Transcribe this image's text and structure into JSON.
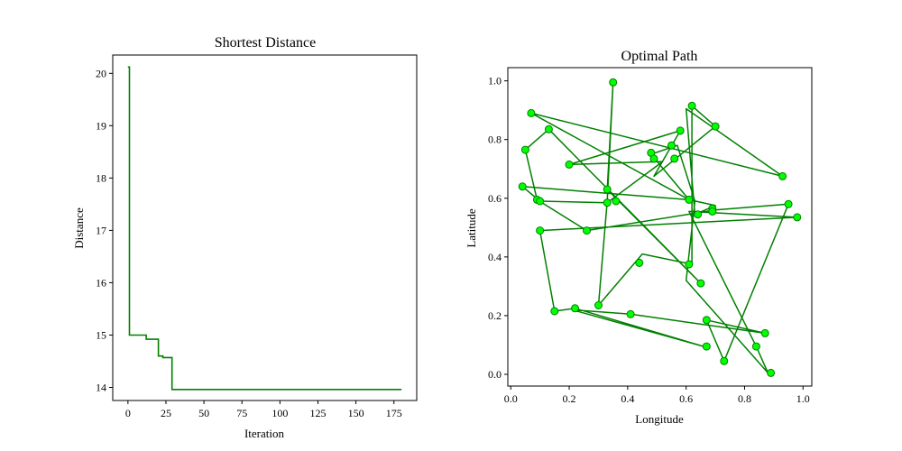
{
  "chart_data": [
    {
      "type": "line",
      "title": "Shortest Distance",
      "xlabel": "Iteration",
      "ylabel": "Distance",
      "xlim": [
        -10,
        190
      ],
      "ylim": [
        13.75,
        20.35
      ],
      "xticks": [
        0,
        25,
        50,
        75,
        100,
        125,
        150,
        175
      ],
      "yticks": [
        14,
        15,
        16,
        17,
        18,
        19,
        20
      ],
      "grid": false,
      "series": [
        {
          "color": "#008000",
          "x": [
            0,
            1,
            1,
            11,
            11,
            12,
            12,
            20,
            20,
            21,
            21,
            23,
            23,
            25,
            25,
            28,
            28,
            29,
            29,
            30,
            30,
            180
          ],
          "y": [
            20.12,
            20.12,
            15.0,
            15.0,
            15.0,
            15.0,
            14.92,
            14.92,
            14.6,
            14.6,
            14.6,
            14.6,
            14.57,
            14.57,
            14.57,
            14.57,
            14.57,
            14.57,
            13.96,
            13.96,
            13.96,
            13.96
          ]
        }
      ]
    },
    {
      "type": "scatter",
      "title": "Optimal Path",
      "xlabel": "Longitude",
      "ylabel": "Latitude",
      "xlim": [
        -0.01,
        1.03
      ],
      "ylim": [
        -0.04,
        1.045
      ],
      "xticks": [
        "0.0",
        "0.2",
        "0.4",
        "0.6",
        "0.8",
        "1.0"
      ],
      "yticks": [
        "0.0",
        "0.2",
        "0.4",
        "0.6",
        "0.8",
        "1.0"
      ],
      "grid": false,
      "line_color": "#008000",
      "marker_fill": "#00ff00",
      "marker_edge": "#008000",
      "path": [
        [
          0.35,
          0.995
        ],
        [
          0.33,
          0.59
        ],
        [
          0.3,
          0.235
        ],
        [
          0.45,
          0.41
        ],
        [
          0.62,
          0.375
        ],
        [
          0.62,
          0.915
        ],
        [
          0.7,
          0.845
        ],
        [
          0.49,
          0.675
        ],
        [
          0.58,
          0.83
        ],
        [
          0.2,
          0.715
        ],
        [
          0.52,
          0.725
        ],
        [
          0.33,
          0.585
        ],
        [
          0.1,
          0.59
        ],
        [
          0.04,
          0.64
        ],
        [
          0.61,
          0.595
        ],
        [
          0.07,
          0.89
        ],
        [
          0.93,
          0.675
        ],
        [
          0.6,
          0.905
        ],
        [
          0.63,
          0.545
        ],
        [
          0.7,
          0.575
        ],
        [
          0.61,
          0.595
        ],
        [
          0.48,
          0.75
        ],
        [
          0.57,
          0.78
        ],
        [
          0.63,
          0.59
        ],
        [
          0.6,
          0.32
        ],
        [
          0.88,
          0.005
        ],
        [
          0.84,
          0.095
        ],
        [
          0.61,
          0.555
        ],
        [
          0.98,
          0.535
        ],
        [
          0.1,
          0.49
        ],
        [
          0.15,
          0.215
        ],
        [
          0.22,
          0.225
        ],
        [
          0.66,
          0.095
        ],
        [
          0.21,
          0.22
        ],
        [
          0.41,
          0.205
        ],
        [
          0.87,
          0.14
        ],
        [
          0.67,
          0.185
        ],
        [
          0.73,
          0.045
        ],
        [
          0.95,
          0.58
        ],
        [
          0.7,
          0.56
        ],
        [
          0.26,
          0.49
        ],
        [
          0.09,
          0.595
        ],
        [
          0.05,
          0.765
        ],
        [
          0.13,
          0.835
        ],
        [
          0.65,
          0.31
        ],
        [
          0.33,
          0.63
        ],
        [
          0.35,
          0.995
        ]
      ],
      "points": [
        [
          0.35,
          0.995
        ],
        [
          0.62,
          0.915
        ],
        [
          0.07,
          0.89
        ],
        [
          0.7,
          0.845
        ],
        [
          0.13,
          0.835
        ],
        [
          0.58,
          0.83
        ],
        [
          0.05,
          0.765
        ],
        [
          0.48,
          0.755
        ],
        [
          0.55,
          0.78
        ],
        [
          0.56,
          0.735
        ],
        [
          0.49,
          0.735
        ],
        [
          0.2,
          0.715
        ],
        [
          0.93,
          0.675
        ],
        [
          0.04,
          0.64
        ],
        [
          0.33,
          0.63
        ],
        [
          0.61,
          0.595
        ],
        [
          0.09,
          0.595
        ],
        [
          0.1,
          0.59
        ],
        [
          0.36,
          0.59
        ],
        [
          0.33,
          0.585
        ],
        [
          0.95,
          0.58
        ],
        [
          0.69,
          0.565
        ],
        [
          0.69,
          0.555
        ],
        [
          0.64,
          0.545
        ],
        [
          0.98,
          0.535
        ],
        [
          0.1,
          0.49
        ],
        [
          0.26,
          0.49
        ],
        [
          0.44,
          0.38
        ],
        [
          0.61,
          0.375
        ],
        [
          0.65,
          0.31
        ],
        [
          0.3,
          0.235
        ],
        [
          0.22,
          0.225
        ],
        [
          0.15,
          0.215
        ],
        [
          0.41,
          0.205
        ],
        [
          0.67,
          0.185
        ],
        [
          0.87,
          0.14
        ],
        [
          0.67,
          0.095
        ],
        [
          0.84,
          0.095
        ],
        [
          0.73,
          0.045
        ],
        [
          0.89,
          0.005
        ]
      ]
    }
  ]
}
